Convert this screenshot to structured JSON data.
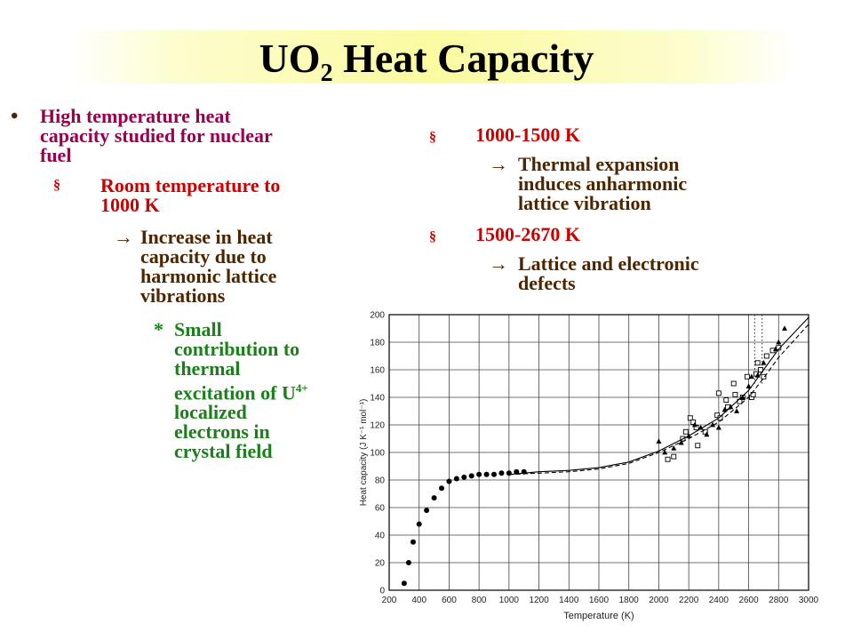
{
  "title": {
    "main": "UO",
    "sub": "2",
    "rest": " Heat Capacity"
  },
  "left": {
    "bullet": "•",
    "item1_lines": [
      "High temperature heat",
      "capacity studied for nuclear",
      "fuel"
    ],
    "sub_marker": "§",
    "item2_lines": [
      "Room temperature to",
      "1000 K"
    ],
    "arrow": "→",
    "item3_lines": [
      "Increase in heat",
      "capacity due to",
      "harmonic lattice",
      "vibrations"
    ],
    "star": "*",
    "item4_lines": [
      "Small",
      "contribution to",
      "thermal",
      "excitation of U",
      "localized",
      "electrons in",
      "crystal field"
    ],
    "item4_sup": "4+"
  },
  "right": {
    "sub_marker": "§",
    "range1": "1000-1500 K",
    "arrow": "→",
    "range1_lines": [
      "Thermal expansion",
      "induces anharmonic",
      "lattice vibration"
    ],
    "range2": "1500-2670 K",
    "range2_lines": [
      "Lattice and electronic",
      "defects"
    ]
  },
  "chart_data": {
    "type": "scatter",
    "xlabel": "Temperature (K)",
    "ylabel": "Heat capacity (J K⁻¹ mol⁻¹)",
    "xlim": [
      200,
      3000
    ],
    "ylim": [
      0,
      200
    ],
    "xticks": [
      200,
      400,
      600,
      800,
      1000,
      1200,
      1400,
      1600,
      1800,
      2000,
      2200,
      2400,
      2600,
      2800,
      3000
    ],
    "yticks": [
      0,
      20,
      40,
      60,
      80,
      100,
      120,
      140,
      160,
      180,
      200
    ],
    "grid": true,
    "series": [
      {
        "marker": "filled-dots",
        "points": [
          [
            300,
            5
          ],
          [
            330,
            20
          ],
          [
            360,
            35
          ],
          [
            400,
            48
          ],
          [
            450,
            58
          ],
          [
            500,
            67
          ],
          [
            550,
            74
          ],
          [
            600,
            79
          ],
          [
            650,
            81
          ],
          [
            700,
            82
          ],
          [
            750,
            83
          ],
          [
            800,
            84
          ],
          [
            850,
            84
          ],
          [
            900,
            84
          ],
          [
            950,
            85
          ],
          [
            1000,
            85
          ],
          [
            1050,
            86
          ],
          [
            1100,
            86
          ]
        ]
      },
      {
        "marker": "open-square",
        "points": [
          [
            2060,
            95
          ],
          [
            2100,
            97
          ],
          [
            2160,
            110
          ],
          [
            2180,
            115
          ],
          [
            2210,
            125
          ],
          [
            2230,
            122
          ],
          [
            2250,
            118
          ],
          [
            2260,
            105
          ],
          [
            2310,
            115
          ],
          [
            2390,
            127
          ],
          [
            2400,
            143
          ],
          [
            2410,
            125
          ],
          [
            2450,
            138
          ],
          [
            2460,
            133
          ],
          [
            2500,
            150
          ],
          [
            2510,
            142
          ],
          [
            2540,
            137
          ],
          [
            2560,
            140
          ],
          [
            2590,
            155
          ],
          [
            2620,
            140
          ],
          [
            2630,
            142
          ],
          [
            2650,
            157
          ],
          [
            2660,
            165
          ],
          [
            2680,
            160
          ],
          [
            2700,
            155
          ],
          [
            2720,
            170
          ],
          [
            2760,
            174
          ],
          [
            2800,
            176
          ]
        ]
      },
      {
        "marker": "filled-triangle",
        "points": [
          [
            2000,
            108
          ],
          [
            2040,
            100
          ],
          [
            2100,
            103
          ],
          [
            2150,
            107
          ],
          [
            2200,
            112
          ],
          [
            2240,
            120
          ],
          [
            2280,
            118
          ],
          [
            2320,
            113
          ],
          [
            2360,
            120
          ],
          [
            2400,
            118
          ],
          [
            2440,
            131
          ],
          [
            2480,
            133
          ],
          [
            2520,
            130
          ],
          [
            2560,
            140
          ],
          [
            2600,
            148
          ],
          [
            2620,
            155
          ],
          [
            2660,
            156
          ],
          [
            2700,
            165
          ],
          [
            2780,
            175
          ],
          [
            2800,
            180
          ],
          [
            2840,
            190
          ]
        ]
      },
      {
        "marker": "line-solid",
        "points": [
          [
            1000,
            84
          ],
          [
            1200,
            86
          ],
          [
            1400,
            87
          ],
          [
            1600,
            89
          ],
          [
            1800,
            93
          ],
          [
            2000,
            101
          ],
          [
            2200,
            112
          ],
          [
            2400,
            125
          ],
          [
            2600,
            145
          ],
          [
            2700,
            160
          ],
          [
            2800,
            175
          ],
          [
            3000,
            198
          ]
        ]
      },
      {
        "marker": "line-dashed",
        "points": [
          [
            1000,
            84
          ],
          [
            1200,
            85
          ],
          [
            1400,
            86
          ],
          [
            1600,
            88
          ],
          [
            1800,
            92
          ],
          [
            2000,
            100
          ],
          [
            2200,
            110
          ],
          [
            2400,
            122
          ],
          [
            2600,
            140
          ],
          [
            2700,
            154
          ],
          [
            2800,
            169
          ],
          [
            3000,
            193
          ]
        ]
      }
    ],
    "vlines": [
      2640,
      2690
    ]
  }
}
